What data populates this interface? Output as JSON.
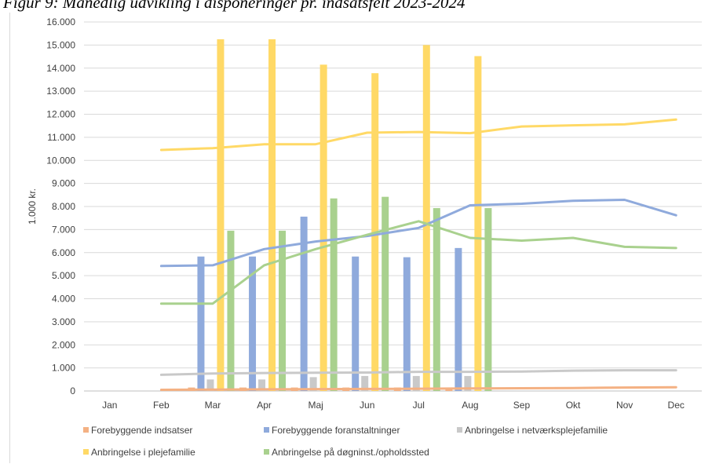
{
  "figure_title": "Figur 9: Månedlig udvikling i disponeringer pr. indsatsfelt 2023-2024",
  "chart_data": {
    "type": "bar",
    "title": "",
    "ylabel": "1.000 kr.",
    "xlabel": "",
    "ylim": [
      0,
      16000
    ],
    "ytick_step": 1000,
    "y_tick_labels": [
      "0",
      "1.000",
      "2.000",
      "3.000",
      "4.000",
      "5.000",
      "6.000",
      "7.000",
      "8.000",
      "9.000",
      "10.000",
      "11.000",
      "12.000",
      "13.000",
      "14.000",
      "15.000",
      "16.000"
    ],
    "categories": [
      "Jan",
      "Feb",
      "Mar",
      "Apr",
      "Maj",
      "Jun",
      "Jul",
      "Aug",
      "Sep",
      "Okt",
      "Nov",
      "Dec"
    ],
    "grid": true,
    "legend_position": "bottom",
    "bar_series": [
      {
        "name": "Forebyggende indsatser",
        "color": "#f4b183",
        "values": [
          null,
          null,
          150,
          150,
          150,
          150,
          150,
          150,
          null,
          null,
          null,
          null
        ]
      },
      {
        "name": "Forebyggende foranstaltninger",
        "color": "#8faadc",
        "values": [
          null,
          null,
          5830,
          5830,
          7560,
          5830,
          5800,
          6200,
          null,
          null,
          null,
          null
        ]
      },
      {
        "name": "Anbringelse i netværksplejefamilie",
        "color": "#c9c9c9",
        "values": [
          null,
          null,
          500,
          500,
          600,
          650,
          650,
          650,
          null,
          null,
          null,
          null
        ]
      },
      {
        "name": "Anbringelse i plejefamilie",
        "color": "#ffd966",
        "values": [
          null,
          null,
          15250,
          15250,
          14150,
          13780,
          15000,
          14520,
          null,
          null,
          null,
          null
        ]
      },
      {
        "name": "Anbringelse på døgninst./opholdssted",
        "color": "#a9d18e",
        "values": [
          null,
          null,
          6950,
          6950,
          8350,
          8420,
          7930,
          7930,
          null,
          null,
          null,
          null
        ]
      }
    ],
    "line_series": [
      {
        "name": "Forebyggende indsatser",
        "color": "#f4b183",
        "values": [
          null,
          50,
          60,
          70,
          80,
          90,
          100,
          110,
          120,
          130,
          150,
          160
        ]
      },
      {
        "name": "Forebyggende foranstaltninger",
        "color": "#8faadc",
        "values": [
          null,
          5420,
          5450,
          6150,
          6480,
          6720,
          7070,
          8050,
          8120,
          8250,
          8290,
          7620
        ]
      },
      {
        "name": "Anbringelse i netværksplejefamilie",
        "color": "#c9c9c9",
        "values": [
          null,
          700,
          760,
          780,
          790,
          800,
          830,
          830,
          840,
          880,
          900,
          900
        ]
      },
      {
        "name": "Anbringelse i plejefamilie",
        "color": "#ffd966",
        "values": [
          null,
          10450,
          10530,
          10700,
          10700,
          11200,
          11230,
          11180,
          11470,
          11520,
          11560,
          11770
        ]
      },
      {
        "name": "Anbringelse på døgninst./opholdssted",
        "color": "#a9d18e",
        "values": [
          null,
          3790,
          3790,
          5450,
          6150,
          6770,
          7360,
          6640,
          6520,
          6640,
          6250,
          6200
        ]
      }
    ]
  }
}
